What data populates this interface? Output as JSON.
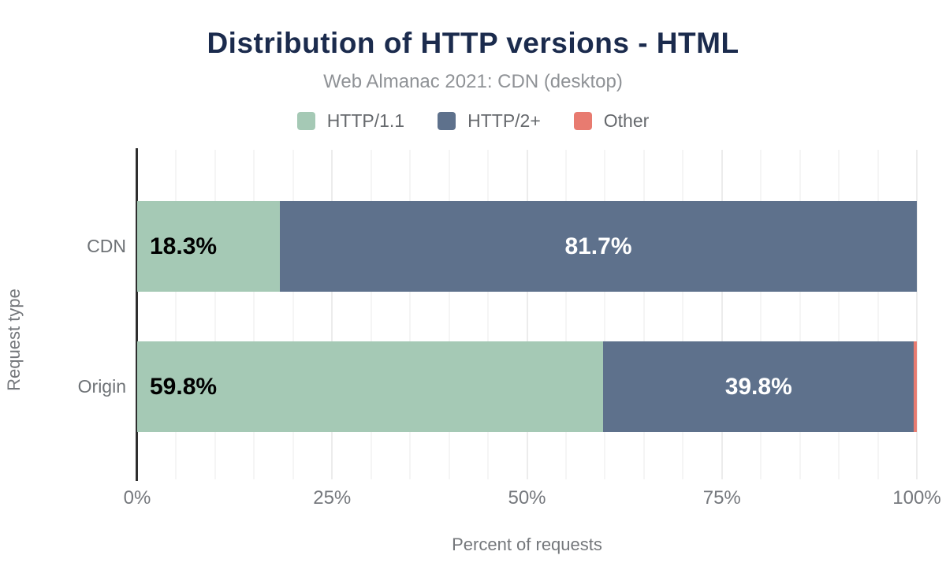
{
  "header": {
    "title": "Distribution of HTTP versions - HTML",
    "subtitle": "Web Almanac 2021: CDN (desktop)"
  },
  "colors": {
    "title_text": "#1b2b4d",
    "subtitle_text": "#8f9296",
    "axis_text": "#74777b",
    "axis_line": "#2e2e2e",
    "grid_minor": "#f5f5f5",
    "grid_major": "#ececec",
    "series_http11": "#a5c9b5",
    "series_http2": "#5e718c",
    "series_other": "#e87b70",
    "bar_label_on_light": "#000000",
    "bar_label_on_dark": "#ffffff"
  },
  "chart_data": {
    "type": "bar",
    "orientation": "horizontal",
    "stacked": true,
    "title": "Distribution of HTTP versions - HTML",
    "subtitle": "Web Almanac 2021: CDN (desktop)",
    "categories": [
      "CDN",
      "Origin"
    ],
    "series": [
      {
        "name": "HTTP/1.1",
        "color": "#a5c9b5",
        "values": [
          18.3,
          59.8
        ]
      },
      {
        "name": "HTTP/2+",
        "color": "#5e718c",
        "values": [
          81.7,
          39.8
        ]
      },
      {
        "name": "Other",
        "color": "#e87b70",
        "values": [
          0.0,
          0.4
        ]
      }
    ],
    "bars": [
      {
        "category": "CDN",
        "segments": [
          {
            "series": "HTTP/1.1",
            "value": 18.3,
            "label": "18.3%",
            "label_color": "#000000",
            "label_align": "left"
          },
          {
            "series": "HTTP/2+",
            "value": 81.7,
            "label": "81.7%",
            "label_color": "#ffffff",
            "label_align": "center"
          }
        ]
      },
      {
        "category": "Origin",
        "segments": [
          {
            "series": "HTTP/1.1",
            "value": 59.8,
            "label": "59.8%",
            "label_color": "#000000",
            "label_align": "left"
          },
          {
            "series": "HTTP/2+",
            "value": 39.8,
            "label": "39.8%",
            "label_color": "#ffffff",
            "label_align": "center"
          },
          {
            "series": "Other",
            "value": 0.4,
            "label": "",
            "label_align": "none"
          }
        ]
      }
    ],
    "x_axis": {
      "label": "Percent of requests",
      "min": 0,
      "max": 100,
      "minor_step": 5,
      "major_step": 25,
      "ticks": [
        {
          "label": "0%",
          "value": 0
        },
        {
          "label": "25%",
          "value": 25
        },
        {
          "label": "50%",
          "value": 50
        },
        {
          "label": "75%",
          "value": 75
        },
        {
          "label": "100%",
          "value": 100
        }
      ]
    },
    "y_axis": {
      "label": "Request type"
    },
    "legend_position": "top",
    "grid": true
  }
}
